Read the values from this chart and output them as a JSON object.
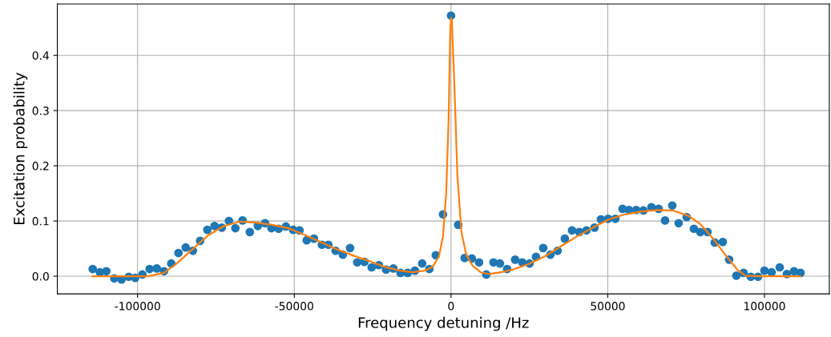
{
  "chart_data": {
    "type": "scatter",
    "xlabel": "Frequency detuning /Hz",
    "ylabel": "Excitation probability",
    "xlim": [
      -125600,
      120700
    ],
    "ylim": [
      -0.032,
      0.493
    ],
    "xticks": [
      -100000,
      -50000,
      0,
      50000,
      100000
    ],
    "yticks": [
      {
        "value": 0,
        "label": "0.0"
      },
      {
        "value": 0.1,
        "label": "0.1"
      },
      {
        "value": 0.2,
        "label": "0.2"
      },
      {
        "value": 0.3,
        "label": "0.3"
      },
      {
        "value": 0.4,
        "label": "0.4"
      }
    ],
    "grid": true,
    "series": [
      {
        "color": "#1f77b4",
        "marker": "circle",
        "x": [
          -114320,
          -112020,
          -109970,
          -107420,
          -105110,
          -102810,
          -100770,
          -98470,
          -96160,
          -93860,
          -91560,
          -89260,
          -86960,
          -84650,
          -82350,
          -80050,
          -77750,
          -75440,
          -73140,
          -70840,
          -68800,
          -66500,
          -64190,
          -61640,
          -59330,
          -57290,
          -54990,
          -52680,
          -50380,
          -48340,
          -46040,
          -43730,
          -41180,
          -39130,
          -36830,
          -34530,
          -32220,
          -29920,
          -27620,
          -25320,
          -23020,
          -20720,
          -18410,
          -16110,
          -13810,
          -11510,
          -9210,
          -6910,
          -4860,
          -2560,
          0,
          2300,
          4350,
          6650,
          8950,
          11250,
          13550,
          15600,
          17900,
          20460,
          22760,
          25060,
          27110,
          29410,
          31710,
          34010,
          36320,
          38620,
          40920,
          43220,
          45780,
          47820,
          50130,
          52430,
          54730,
          56770,
          59080,
          61380,
          63940,
          66240,
          68290,
          70590,
          72630,
          75190,
          77490,
          79540,
          81840,
          84140,
          86700,
          88740,
          91050,
          93350,
          95650,
          97950,
          100000,
          102300,
          104860,
          107160,
          109460,
          111510
        ],
        "values": [
          0.013,
          0.007,
          0.009,
          -0.004,
          -0.006,
          -0.001,
          -0.003,
          0.003,
          0.013,
          0.014,
          0.009,
          0.023,
          0.042,
          0.052,
          0.046,
          0.064,
          0.084,
          0.091,
          0.088,
          0.1,
          0.087,
          0.101,
          0.08,
          0.091,
          0.096,
          0.087,
          0.086,
          0.09,
          0.084,
          0.083,
          0.065,
          0.068,
          0.057,
          0.057,
          0.046,
          0.039,
          0.051,
          0.025,
          0.026,
          0.016,
          0.02,
          0.012,
          0.014,
          0.006,
          0.006,
          0.01,
          0.023,
          0.013,
          0.038,
          0.112,
          0.472,
          0.093,
          0.033,
          0.032,
          0.025,
          0.003,
          0.025,
          0.023,
          0.013,
          0.03,
          0.025,
          0.023,
          0.035,
          0.051,
          0.039,
          0.046,
          0.068,
          0.083,
          0.08,
          0.083,
          0.088,
          0.103,
          0.104,
          0.104,
          0.122,
          0.12,
          0.12,
          0.119,
          0.125,
          0.122,
          0.101,
          0.128,
          0.096,
          0.107,
          0.086,
          0.08,
          0.08,
          0.061,
          0.062,
          0.03,
          0.001,
          0.006,
          -0.001,
          -0.001,
          0.01,
          0.007,
          0.016,
          0.004,
          0.009,
          0.006
        ]
      },
      {
        "type": "line",
        "color": "#ff7f0e",
        "marker": "none",
        "line_style": "solid",
        "x": [
          -114320,
          -96670,
          -91560,
          -87720,
          -82610,
          -77490,
          -72380,
          -67260,
          -62150,
          -57030,
          -51920,
          -46800,
          -41690,
          -36570,
          -31460,
          -26340,
          -21230,
          -16110,
          -12280,
          -8440,
          -5880,
          -3840,
          -2560,
          -1530,
          -770,
          -260,
          0,
          260,
          1020,
          2050,
          3320,
          4860,
          6910,
          9460,
          12020,
          15860,
          19690,
          24810,
          29920,
          35040,
          40150,
          45270,
          50380,
          55500,
          60610,
          65730,
          70840,
          75960,
          79790,
          83630,
          87470,
          91300,
          93860,
          98980,
          111510
        ],
        "values": [
          0,
          0,
          0.006,
          0.022,
          0.048,
          0.074,
          0.091,
          0.099,
          0.097,
          0.093,
          0.087,
          0.075,
          0.062,
          0.049,
          0.038,
          0.028,
          0.017,
          0.01,
          0.007,
          0.01,
          0.017,
          0.036,
          0.072,
          0.152,
          0.283,
          0.442,
          0.468,
          0.464,
          0.355,
          0.181,
          0.08,
          0.039,
          0.019,
          0.007,
          0.004,
          0.007,
          0.012,
          0.022,
          0.036,
          0.054,
          0.072,
          0.088,
          0.103,
          0.112,
          0.117,
          0.12,
          0.119,
          0.109,
          0.093,
          0.068,
          0.039,
          0.012,
          0.001,
          0,
          0
        ]
      }
    ]
  }
}
